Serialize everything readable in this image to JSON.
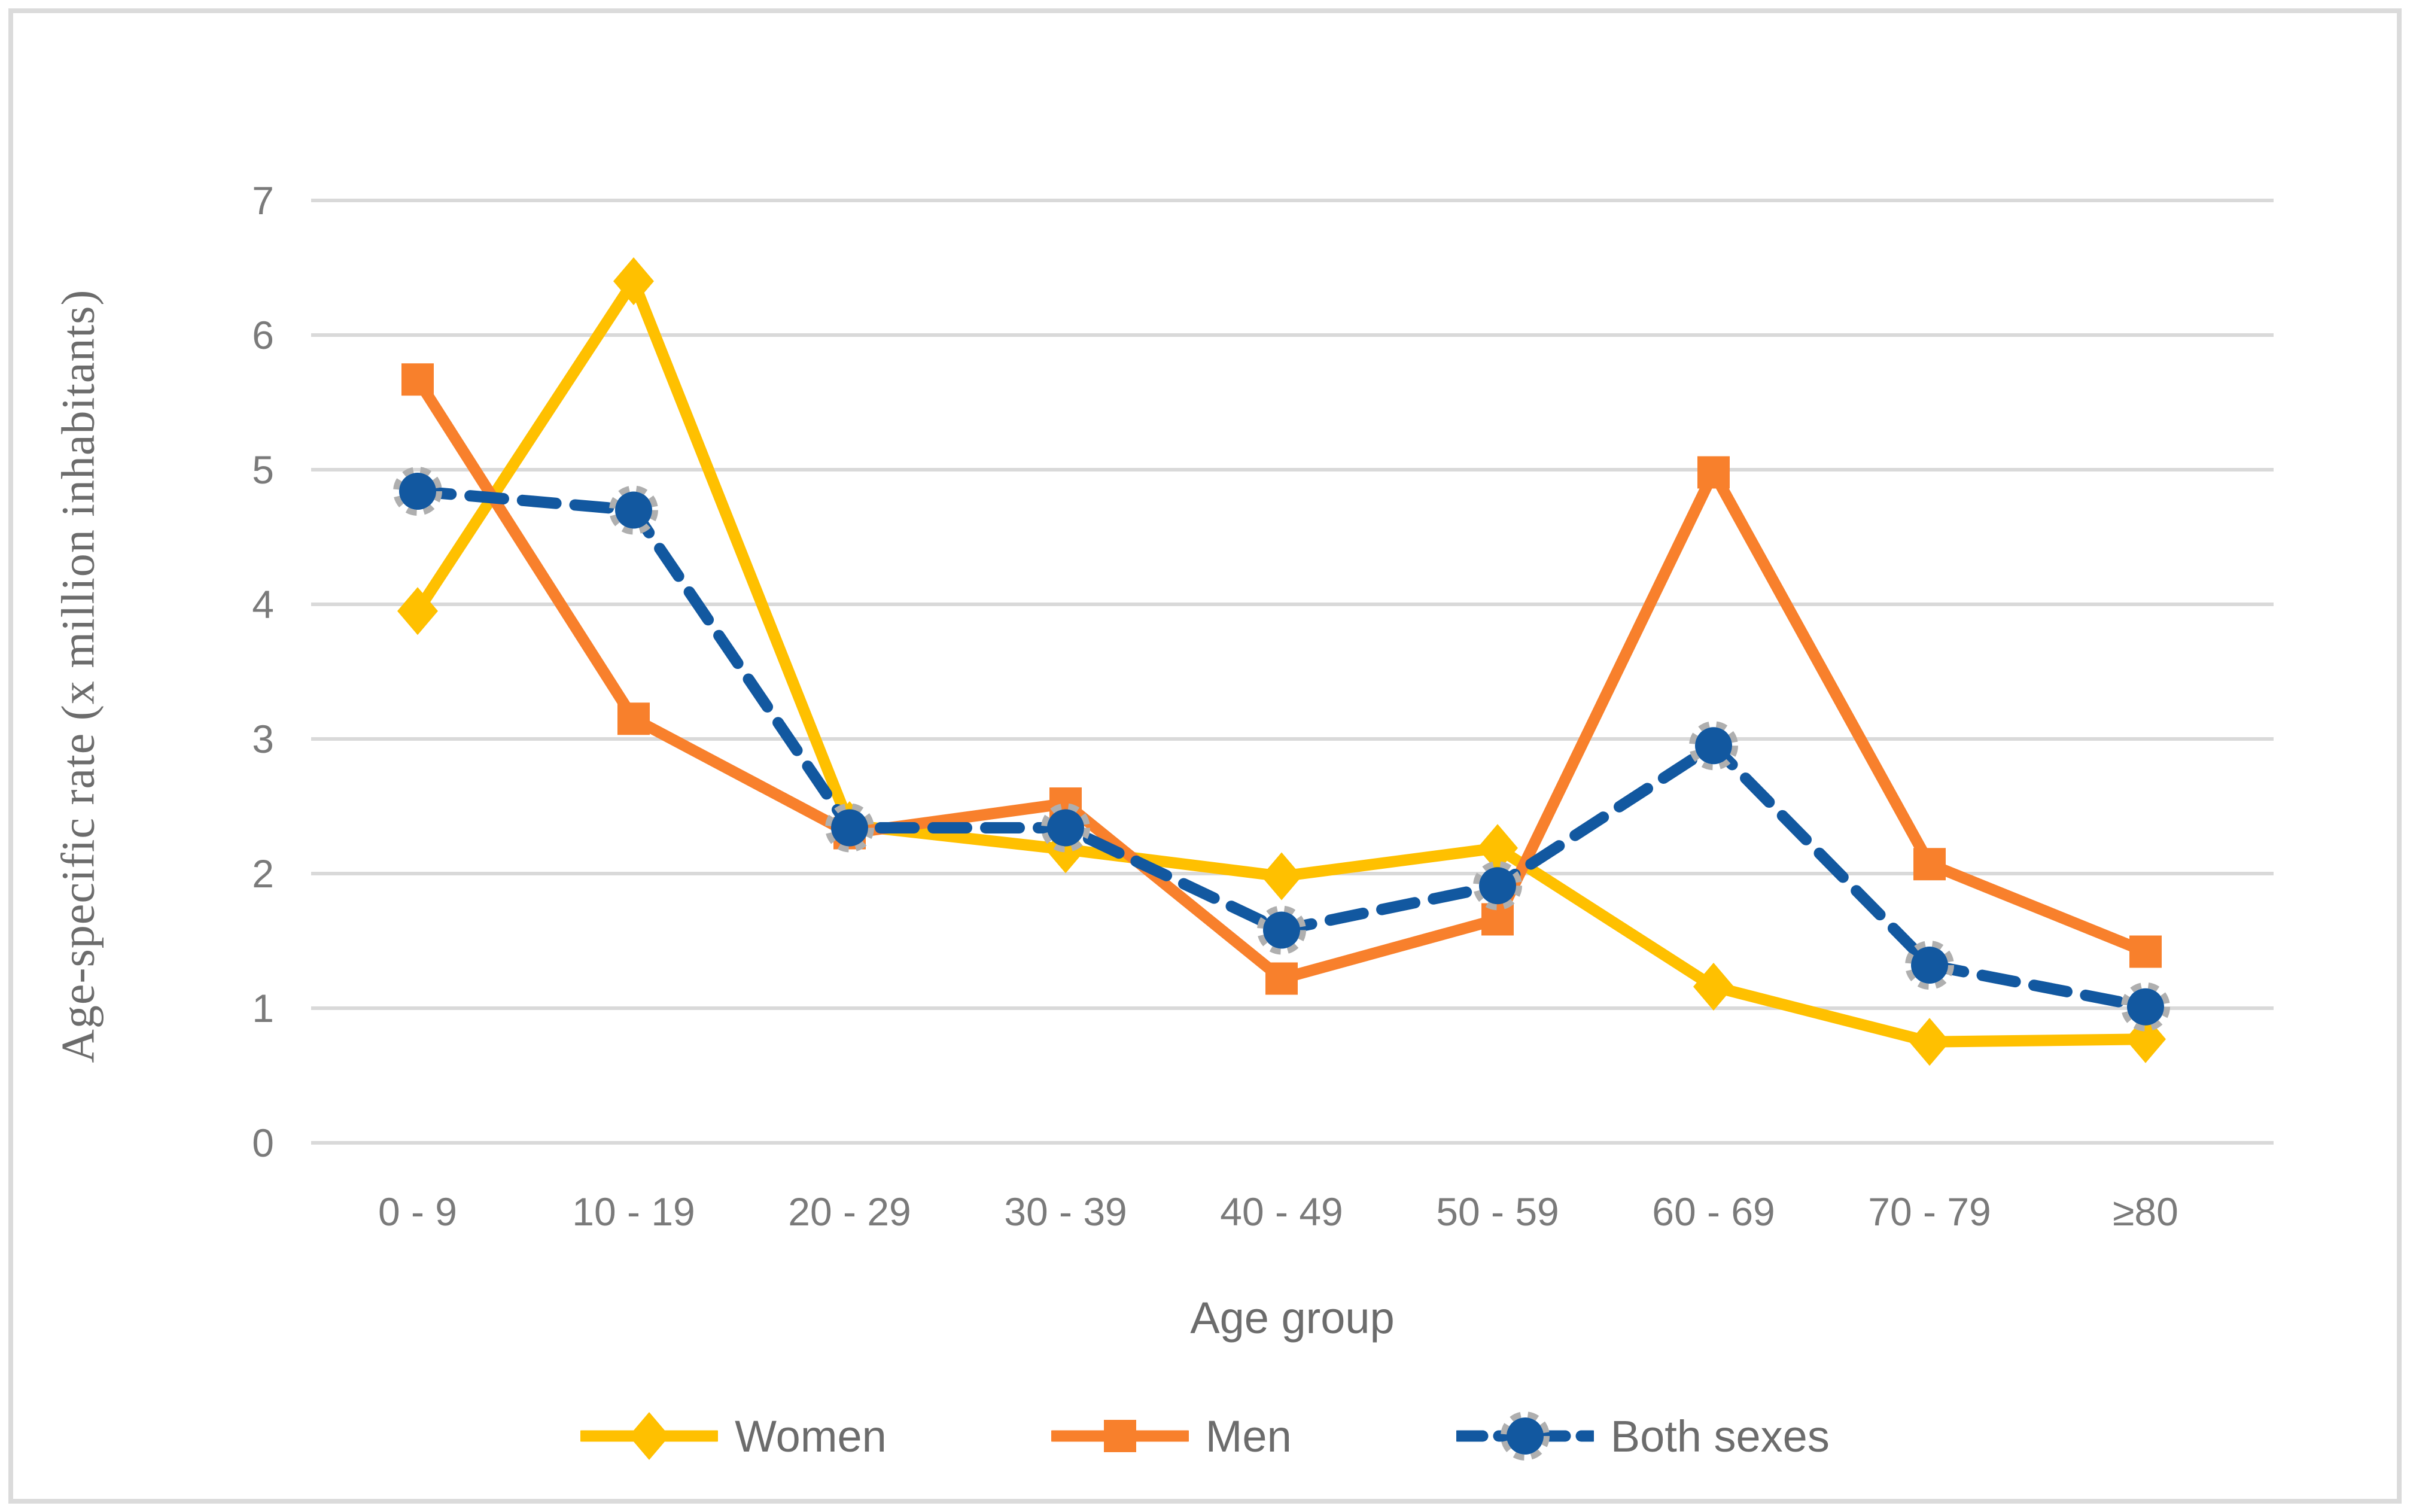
{
  "figure": {
    "background": "#FFFFFF",
    "border_color": "#DBDBDB"
  },
  "axes_style": {
    "gridline_color": "#D9D9D9",
    "tick_label_color": "#7A7A7A",
    "axis_title_color": "#6C6C6C"
  },
  "chart_data": {
    "type": "line",
    "title": "",
    "categories": [
      "0 - 9",
      "10 - 19",
      "20 - 29",
      "30 - 39",
      "40 - 49",
      "50 - 59",
      "60 - 69",
      "70 - 79",
      "≥80"
    ],
    "series": [
      {
        "name": "Women",
        "color": "#FFC000",
        "marker": "diamond",
        "line_style": "solid",
        "values": [
          3.95,
          6.4,
          2.36,
          2.18,
          1.98,
          2.19,
          1.16,
          0.75,
          0.77
        ]
      },
      {
        "name": "Men",
        "color": "#F8802C",
        "marker": "square",
        "line_style": "solid",
        "values": [
          5.67,
          3.15,
          2.3,
          2.52,
          1.22,
          1.66,
          4.98,
          2.07,
          1.42
        ]
      },
      {
        "name": "Both sexes",
        "color": "#1258A0",
        "marker": "circle",
        "marker_ring_color": "#AFAFAF",
        "line_style": "dashed",
        "values": [
          4.84,
          4.7,
          2.34,
          2.34,
          1.58,
          1.91,
          2.95,
          1.32,
          1.01
        ]
      }
    ],
    "xlabel": "Age group",
    "ylabel": "Age-specific rate  (x million inhabitants)",
    "ylim": [
      0,
      7
    ],
    "y_ticks": [
      0,
      1,
      2,
      3,
      4,
      5,
      6,
      7
    ],
    "grid": true,
    "legend_position": "bottom"
  }
}
